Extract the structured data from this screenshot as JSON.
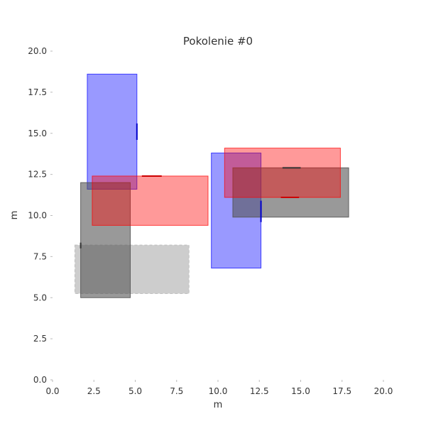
{
  "chart_data": {
    "type": "rectangles",
    "title": "Pokolenie #0",
    "xlabel": "m",
    "ylabel": "m",
    "xlim": [
      0,
      20
    ],
    "ylim": [
      0,
      20
    ],
    "xticks": [
      "0.0",
      "2.5",
      "5.0",
      "7.5",
      "10.0",
      "12.5",
      "15.0",
      "17.5",
      "20.0"
    ],
    "yticks": [
      "0.0",
      "2.5",
      "5.0",
      "7.5",
      "10.0",
      "12.5",
      "15.0",
      "17.5",
      "20.0"
    ],
    "grid": false,
    "rectangles": [
      {
        "x0": 1.35,
        "x1": 8.25,
        "y0": 5.25,
        "y1": 8.2,
        "color": "#c0c0c0",
        "opacity": 0.8,
        "dashed": true
      },
      {
        "x0": 2.1,
        "x1": 5.1,
        "y0": 11.6,
        "y1": 18.6,
        "color": "#0000ff",
        "opacity": 0.4,
        "dashed": false
      },
      {
        "x0": 1.7,
        "x1": 4.7,
        "y0": 5.0,
        "y1": 12.0,
        "color": "#555555",
        "opacity": 0.6,
        "dashed": false
      },
      {
        "x0": 2.4,
        "x1": 9.4,
        "y0": 9.4,
        "y1": 12.4,
        "color": "#ff0000",
        "opacity": 0.4,
        "dashed": false
      },
      {
        "x0": 9.6,
        "x1": 12.6,
        "y0": 6.8,
        "y1": 13.8,
        "color": "#0000ff",
        "opacity": 0.4,
        "dashed": false
      },
      {
        "x0": 10.9,
        "x1": 17.9,
        "y0": 9.9,
        "y1": 12.9,
        "color": "#555555",
        "opacity": 0.6,
        "dashed": false
      },
      {
        "x0": 10.4,
        "x1": 17.4,
        "y0": 11.1,
        "y1": 14.1,
        "color": "#ff0000",
        "opacity": 0.4,
        "dashed": false
      }
    ],
    "door_marks": [
      {
        "x0": 5.1,
        "x1": 5.1,
        "y0": 14.6,
        "y1": 15.6,
        "color": "#0000cc"
      },
      {
        "x0": 5.4,
        "x1": 6.6,
        "y0": 12.4,
        "y1": 12.4,
        "color": "#cc0000"
      },
      {
        "x0": 1.7,
        "x1": 1.7,
        "y0": 8.0,
        "y1": 8.35,
        "color": "#333333"
      },
      {
        "x0": 12.6,
        "x1": 12.6,
        "y0": 9.6,
        "y1": 10.9,
        "color": "#0000cc"
      },
      {
        "x0": 13.8,
        "x1": 14.9,
        "y0": 11.1,
        "y1": 11.1,
        "color": "#cc0000"
      },
      {
        "x0": 13.9,
        "x1": 15.0,
        "y0": 12.9,
        "y1": 12.9,
        "color": "#333333"
      }
    ]
  }
}
